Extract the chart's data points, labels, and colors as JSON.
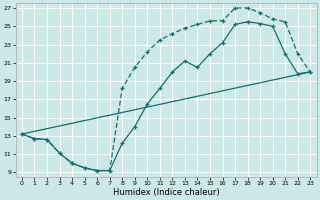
{
  "xlabel": "Humidex (Indice chaleur)",
  "background_color": "#cce8e8",
  "grid_color": "#b8d8d8",
  "line_color": "#1a6b6b",
  "xlim": [
    -0.5,
    23.5
  ],
  "ylim": [
    8.5,
    27.5
  ],
  "xticks": [
    0,
    1,
    2,
    3,
    4,
    5,
    6,
    7,
    8,
    9,
    10,
    11,
    12,
    13,
    14,
    15,
    16,
    17,
    18,
    19,
    20,
    21,
    22,
    23
  ],
  "yticks": [
    9,
    11,
    13,
    15,
    17,
    19,
    21,
    23,
    25,
    27
  ],
  "curve1_x": [
    0,
    1,
    2,
    3,
    4,
    5,
    6,
    7,
    8,
    9,
    10,
    11,
    12,
    13,
    14,
    15,
    16,
    17,
    18,
    19,
    20,
    21,
    22,
    23
  ],
  "curve1_y": [
    13.2,
    12.7,
    12.6,
    11.1,
    10.0,
    9.5,
    9.2,
    9.2,
    12.2,
    14.0,
    16.5,
    18.2,
    20.0,
    21.2,
    20.5,
    22.0,
    23.2,
    25.2,
    25.5,
    25.3,
    25.0,
    22.0,
    19.8,
    20.0
  ],
  "curve2_x": [
    0,
    1,
    2,
    3,
    4,
    5,
    6,
    7,
    8,
    9,
    10,
    11,
    12,
    13,
    14,
    15,
    16,
    17,
    18,
    19,
    20,
    21,
    22,
    23
  ],
  "curve2_y": [
    13.2,
    12.7,
    12.6,
    11.1,
    10.0,
    9.5,
    9.2,
    9.2,
    18.2,
    20.5,
    22.2,
    23.5,
    24.2,
    24.8,
    25.2,
    25.6,
    25.6,
    27.0,
    27.0,
    26.5,
    25.8,
    25.5,
    22.0,
    20.0
  ],
  "line3_x": [
    0,
    23
  ],
  "line3_y": [
    13.2,
    20.0
  ],
  "figsize": [
    3.2,
    2.0
  ],
  "dpi": 100
}
